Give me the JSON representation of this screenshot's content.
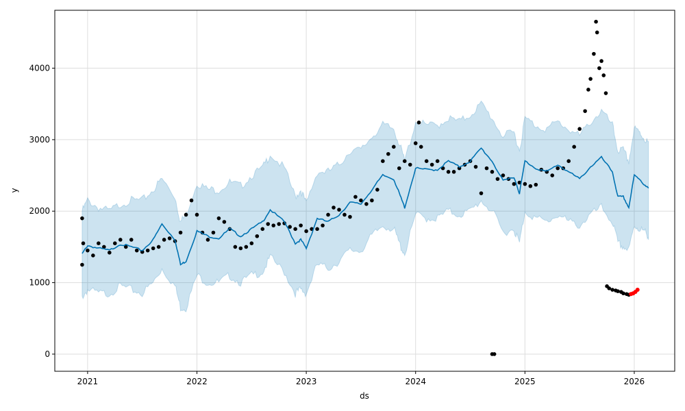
{
  "chart_data": {
    "type": "line",
    "title": "",
    "xlabel": "ds",
    "ylabel": "y",
    "xlim": [
      2020.7,
      2026.37
    ],
    "ylim": [
      -240,
      4810
    ],
    "grid": true,
    "x_ticks": [
      2021,
      2022,
      2023,
      2024,
      2025,
      2026
    ],
    "x_tick_labels": [
      "2021",
      "2022",
      "2023",
      "2024",
      "2025",
      "2026"
    ],
    "y_ticks": [
      0,
      1000,
      2000,
      3000,
      4000
    ],
    "y_tick_labels": [
      "0",
      "1000",
      "2000",
      "3000",
      "4000"
    ],
    "colors": {
      "forecast": "#0072B2",
      "band": "#0072B2",
      "actual": "#000000",
      "highlight": "#ff0000",
      "grid": "#dddddd"
    },
    "forecast": {
      "x": [
        2020.95,
        2021.0,
        2021.1,
        2021.2,
        2021.3,
        2021.4,
        2021.5,
        2021.6,
        2021.68,
        2021.8,
        2021.85,
        2021.9,
        2022.0,
        2022.1,
        2022.2,
        2022.3,
        2022.4,
        2022.5,
        2022.6,
        2022.67,
        2022.8,
        2022.9,
        2022.95,
        2023.0,
        2023.1,
        2023.2,
        2023.3,
        2023.4,
        2023.5,
        2023.6,
        2023.7,
        2023.8,
        2023.85,
        2023.9,
        2024.0,
        2024.1,
        2024.2,
        2024.3,
        2024.4,
        2024.5,
        2024.6,
        2024.7,
        2024.8,
        2024.9,
        2024.95,
        2025.0,
        2025.1,
        2025.2,
        2025.3,
        2025.4,
        2025.5,
        2025.6,
        2025.7,
        2025.8,
        2025.85,
        2025.9,
        2025.95,
        2026.0,
        2026.05,
        2026.1,
        2026.13
      ],
      "yhat": [
        1400,
        1520,
        1480,
        1450,
        1540,
        1500,
        1450,
        1600,
        1820,
        1600,
        1250,
        1300,
        1720,
        1650,
        1620,
        1750,
        1650,
        1750,
        1850,
        2020,
        1850,
        1550,
        1600,
        1480,
        1900,
        1850,
        1950,
        2120,
        2100,
        2300,
        2500,
        2450,
        2250,
        2050,
        2600,
        2580,
        2580,
        2700,
        2620,
        2700,
        2880,
        2700,
        2420,
        2480,
        2250,
        2700,
        2600,
        2550,
        2650,
        2550,
        2450,
        2620,
        2750,
        2550,
        2200,
        2200,
        2050,
        2500,
        2450,
        2350,
        2320
      ],
      "upper": [
        2000,
        2150,
        2050,
        2000,
        2100,
        2150,
        2150,
        2300,
        2450,
        2200,
        1850,
        1950,
        2400,
        2300,
        2300,
        2400,
        2350,
        2500,
        2600,
        2800,
        2600,
        2200,
        2300,
        2100,
        2550,
        2550,
        2650,
        2850,
        2850,
        3050,
        3200,
        3150,
        2950,
        2700,
        3250,
        3200,
        3200,
        3300,
        3250,
        3350,
        3500,
        3300,
        3050,
        3100,
        2850,
        3300,
        3200,
        3150,
        3250,
        3150,
        3050,
        3250,
        3400,
        3200,
        2850,
        2850,
        2700,
        3150,
        3100,
        3000,
        2950
      ],
      "lower": [
        800,
        900,
        850,
        850,
        950,
        900,
        850,
        1000,
        1200,
        950,
        650,
        650,
        1100,
        1000,
        1000,
        1100,
        1000,
        1100,
        1150,
        1350,
        1150,
        850,
        900,
        850,
        1250,
        1200,
        1300,
        1450,
        1450,
        1650,
        1800,
        1750,
        1550,
        1400,
        1950,
        1900,
        1900,
        2000,
        1950,
        2000,
        2150,
        2000,
        1700,
        1750,
        1550,
        2000,
        1900,
        1850,
        1950,
        1850,
        1800,
        1950,
        2050,
        1850,
        1550,
        1500,
        1450,
        1800,
        1750,
        1700,
        1650
      ]
    },
    "actual": {
      "x": [
        2020.95,
        2020.95,
        2020.96,
        2021.0,
        2021.05,
        2021.1,
        2021.15,
        2021.2,
        2021.25,
        2021.3,
        2021.35,
        2021.4,
        2021.45,
        2021.5,
        2021.55,
        2021.6,
        2021.65,
        2021.7,
        2021.75,
        2021.8,
        2021.85,
        2021.9,
        2021.95,
        2022.0,
        2022.05,
        2022.1,
        2022.15,
        2022.2,
        2022.25,
        2022.3,
        2022.35,
        2022.4,
        2022.45,
        2022.5,
        2022.55,
        2022.6,
        2022.65,
        2022.7,
        2022.75,
        2022.8,
        2022.85,
        2022.9,
        2022.95,
        2023.0,
        2023.05,
        2023.1,
        2023.15,
        2023.2,
        2023.25,
        2023.3,
        2023.35,
        2023.4,
        2023.45,
        2023.5,
        2023.55,
        2023.6,
        2023.65,
        2023.7,
        2023.75,
        2023.8,
        2023.85,
        2023.9,
        2023.95,
        2024.0,
        2024.03,
        2024.05,
        2024.1,
        2024.15,
        2024.2,
        2024.25,
        2024.3,
        2024.35,
        2024.4,
        2024.45,
        2024.5,
        2024.55,
        2024.6,
        2024.65,
        2024.7,
        2024.7,
        2024.72,
        2024.75,
        2024.8,
        2024.85,
        2024.9,
        2024.95,
        2025.0,
        2025.05,
        2025.1,
        2025.15,
        2025.2,
        2025.25,
        2025.3,
        2025.35,
        2025.4,
        2025.45,
        2025.5,
        2025.55,
        2025.58,
        2025.6,
        2025.63,
        2025.65,
        2025.66,
        2025.68,
        2025.7,
        2025.72,
        2025.74,
        2025.75,
        2025.77,
        2025.8,
        2025.83,
        2025.85,
        2025.88,
        2025.9,
        2025.93,
        2025.95
      ],
      "y": [
        1250,
        1900,
        1550,
        1450,
        1380,
        1550,
        1500,
        1420,
        1550,
        1600,
        1500,
        1600,
        1450,
        1430,
        1450,
        1480,
        1500,
        1600,
        1620,
        1580,
        1700,
        1950,
        2150,
        1950,
        1700,
        1600,
        1700,
        1900,
        1850,
        1750,
        1500,
        1480,
        1500,
        1550,
        1650,
        1750,
        1820,
        1800,
        1820,
        1830,
        1780,
        1750,
        1800,
        1720,
        1750,
        1750,
        1800,
        1950,
        2050,
        2020,
        1950,
        1920,
        2200,
        2150,
        2100,
        2150,
        2300,
        2700,
        2800,
        2900,
        2600,
        2700,
        2650,
        2950,
        3240,
        2900,
        2700,
        2650,
        2700,
        2600,
        2550,
        2550,
        2600,
        2650,
        2700,
        2620,
        2250,
        2600,
        2550,
        0,
        0,
        2450,
        2500,
        2450,
        2380,
        2400,
        2380,
        2350,
        2370,
        2580,
        2550,
        2500,
        2600,
        2600,
        2700,
        2900,
        3150,
        3400,
        3700,
        3850,
        4200,
        4650,
        4500,
        4000,
        4100,
        3900,
        3650,
        950,
        920,
        900,
        890,
        880,
        870,
        850,
        840,
        830
      ]
    },
    "recent": {
      "x": [
        2025.97,
        2025.99,
        2026.01,
        2026.03
      ],
      "y": [
        840,
        850,
        870,
        900
      ]
    }
  }
}
